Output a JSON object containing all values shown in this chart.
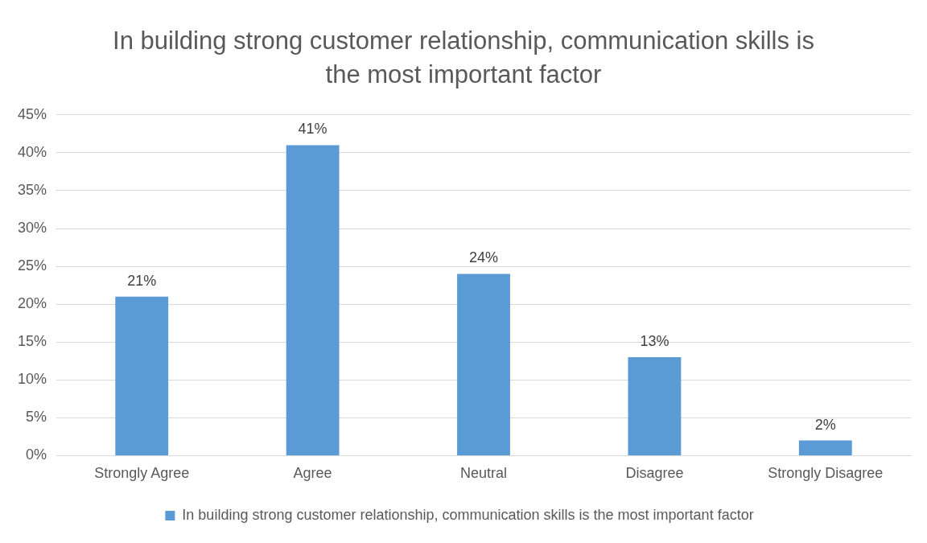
{
  "chart_data": {
    "type": "bar",
    "title": "In building strong customer relationship, communication skills is the most important factor",
    "categories": [
      "Strongly Agree",
      "Agree",
      "Neutral",
      "Disagree",
      "Strongly Disagree"
    ],
    "series": [
      {
        "name": "In building strong customer relationship, communication skills is the most important factor",
        "color": "#5b9bd5",
        "values": [
          21,
          41,
          24,
          13,
          2
        ],
        "value_labels": [
          "21%",
          "41%",
          "24%",
          "13%",
          "2%"
        ]
      }
    ],
    "ylim": [
      0,
      45
    ],
    "yticks": [
      {
        "value": 0,
        "label": "0%"
      },
      {
        "value": 5,
        "label": "5%"
      },
      {
        "value": 10,
        "label": "10%"
      },
      {
        "value": 15,
        "label": "15%"
      },
      {
        "value": 20,
        "label": "20%"
      },
      {
        "value": 25,
        "label": "25%"
      },
      {
        "value": 30,
        "label": "30%"
      },
      {
        "value": 35,
        "label": "35%"
      },
      {
        "value": 40,
        "label": "40%"
      },
      {
        "value": 45,
        "label": "45%"
      }
    ],
    "grid": "y",
    "legend": "bottom"
  }
}
